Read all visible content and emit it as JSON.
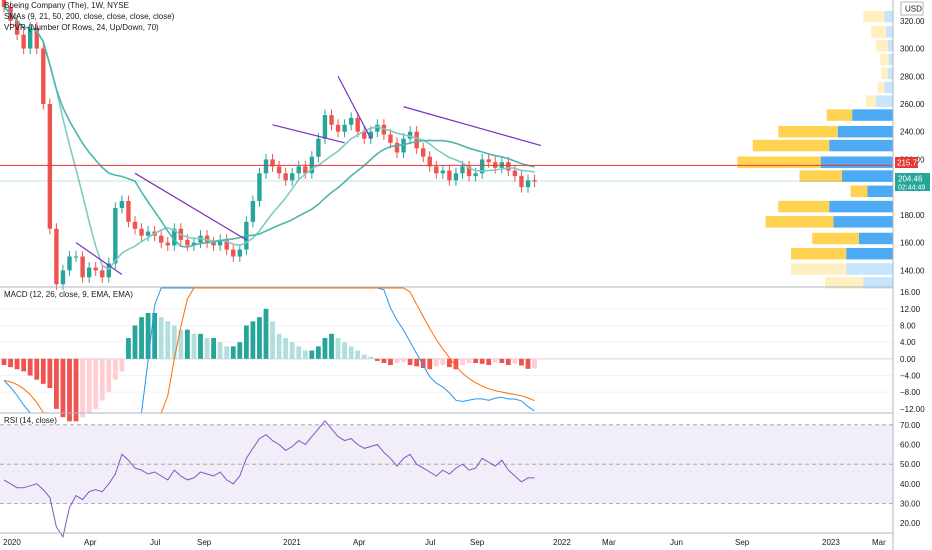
{
  "header": {
    "symbol_title": "Boeing Company (The), 1W, NYSE",
    "sma_legend": "SMAs (9, 21, 50, 200, close, close, close, close)",
    "vpvr_legend": "VPVR (Number Of Rows, 24, Up/Down, 70)",
    "currency": "USD"
  },
  "price_badges": {
    "hline_price": "215.72",
    "last_price": "204.46",
    "countdown": "02:44:49"
  },
  "macd_legend": "MACD (12, 26, close, 9, EMA, EMA)",
  "rsi_legend": "RSI (14, close)",
  "colors": {
    "up": "#26a69a",
    "down": "#ef5350",
    "hline": "#e53935",
    "sma_light": "#80cbc4",
    "sma_dark": "#4db6ac",
    "trend": "#7b2fbe",
    "vpvr_up": "#2196f3",
    "vpvr_down": "#ffc107",
    "macd_line": "#2196f3",
    "signal_line": "#ff6d00",
    "rsi_line": "#7e57c2"
  },
  "chart_data": [
    {
      "type": "candlestick",
      "title": "Boeing Company (The), 1W, NYSE",
      "y_axis_ticks": [
        140,
        160,
        180,
        200,
        220,
        240,
        260,
        280,
        300,
        320
      ],
      "ylim": [
        128,
        335
      ],
      "x_axis_labels": [
        "2020",
        "Apr",
        "Jul",
        "Sep",
        "2021",
        "Apr",
        "Jul",
        "Sep",
        "2022",
        "Mar",
        "Jun",
        "Sep",
        "2023",
        "Mar"
      ],
      "horizontal_line": 215.72,
      "last_price": 204.46,
      "approx_weekly_close": [
        330,
        320,
        310,
        300,
        315,
        300,
        260,
        170,
        130,
        140,
        150,
        150,
        135,
        142,
        140,
        135,
        145,
        185,
        190,
        175,
        170,
        165,
        168,
        165,
        160,
        158,
        170,
        162,
        158,
        160,
        165,
        160,
        158,
        162,
        155,
        150,
        155,
        175,
        190,
        210,
        220,
        215,
        210,
        205,
        210,
        215,
        210,
        222,
        235,
        252,
        245,
        240,
        245,
        250,
        240,
        235,
        240,
        245,
        238,
        232,
        225,
        235,
        240,
        228,
        222,
        215,
        210,
        212,
        205,
        210,
        215,
        208,
        210,
        220,
        218,
        214,
        218,
        212,
        208,
        200,
        205,
        204
      ],
      "series": [
        {
          "name": "SMA 9"
        },
        {
          "name": "SMA 21"
        }
      ],
      "volume_profile": {
        "type": "horizontal-bar",
        "bins": [
          {
            "price": 323,
            "up": 10,
            "down": 25
          },
          {
            "price": 312,
            "up": 8,
            "down": 18
          },
          {
            "price": 302,
            "up": 6,
            "down": 14
          },
          {
            "price": 292,
            "up": 5,
            "down": 10
          },
          {
            "price": 282,
            "up": 6,
            "down": 8
          },
          {
            "price": 272,
            "up": 10,
            "down": 8
          },
          {
            "price": 262,
            "up": 20,
            "down": 12
          },
          {
            "price": 252,
            "up": 48,
            "down": 30
          },
          {
            "price": 240,
            "up": 65,
            "down": 70
          },
          {
            "price": 230,
            "up": 75,
            "down": 90
          },
          {
            "price": 218,
            "up": 85,
            "down": 98
          },
          {
            "price": 208,
            "up": 60,
            "down": 50
          },
          {
            "price": 197,
            "up": 30,
            "down": 20
          },
          {
            "price": 186,
            "up": 75,
            "down": 60
          },
          {
            "price": 175,
            "up": 70,
            "down": 80
          },
          {
            "price": 163,
            "up": 40,
            "down": 55
          },
          {
            "price": 152,
            "up": 55,
            "down": 65
          },
          {
            "price": 141,
            "up": 55,
            "down": 65
          },
          {
            "price": 131,
            "up": 35,
            "down": 45
          }
        ]
      }
    },
    {
      "type": "bar",
      "title": "MACD (12, 26, close, 9, EMA, EMA)",
      "y_axis_ticks": [
        -12,
        -8,
        -4,
        0,
        4,
        8,
        12,
        16
      ],
      "ylim": [
        -13,
        17
      ],
      "histogram": [
        -1.5,
        -2,
        -2.5,
        -3,
        -4,
        -5,
        -6,
        -7,
        -12,
        -14,
        -15,
        -15,
        -14,
        -13,
        -12,
        -10,
        -8,
        -5,
        -3,
        5,
        8,
        10,
        11,
        11,
        10,
        9,
        8,
        7,
        7,
        6,
        6,
        5,
        5,
        4,
        3,
        3,
        4,
        8,
        9,
        10,
        12,
        9,
        6,
        5,
        4,
        3,
        2,
        2,
        3,
        5,
        6,
        5,
        4,
        3,
        2,
        1,
        0.5,
        -0.5,
        -1,
        -1.5,
        -1,
        -0.8,
        -1.5,
        -1.8,
        -2.2,
        -2.5,
        -1.8,
        -1.5,
        -2,
        -2.5,
        -1.5,
        -1,
        -1,
        -1.2,
        -1.5,
        -0.8,
        -1,
        -1.5,
        -1.2,
        -1.6,
        -2.4,
        -2.3
      ],
      "series": [
        {
          "name": "MACD"
        },
        {
          "name": "Signal"
        }
      ]
    },
    {
      "type": "line",
      "title": "RSI (14, close)",
      "y_axis_ticks": [
        20,
        30,
        40,
        50,
        60,
        70
      ],
      "ylim": [
        15,
        75
      ],
      "band": [
        30,
        70
      ],
      "midline": 50,
      "values": [
        42,
        40,
        38,
        38,
        39,
        40,
        37,
        33,
        18,
        13,
        28,
        34,
        32,
        36,
        37,
        36,
        40,
        45,
        55,
        52,
        48,
        47,
        45,
        46,
        44,
        42,
        47,
        44,
        42,
        43,
        46,
        45,
        44,
        46,
        42,
        40,
        44,
        53,
        58,
        63,
        65,
        62,
        60,
        57,
        59,
        62,
        60,
        64,
        68,
        72,
        68,
        64,
        62,
        63,
        60,
        58,
        59,
        60,
        56,
        53,
        49,
        53,
        55,
        50,
        48,
        46,
        44,
        47,
        45,
        48,
        50,
        47,
        48,
        53,
        51,
        49,
        52,
        47,
        44,
        41,
        43,
        43
      ]
    }
  ]
}
